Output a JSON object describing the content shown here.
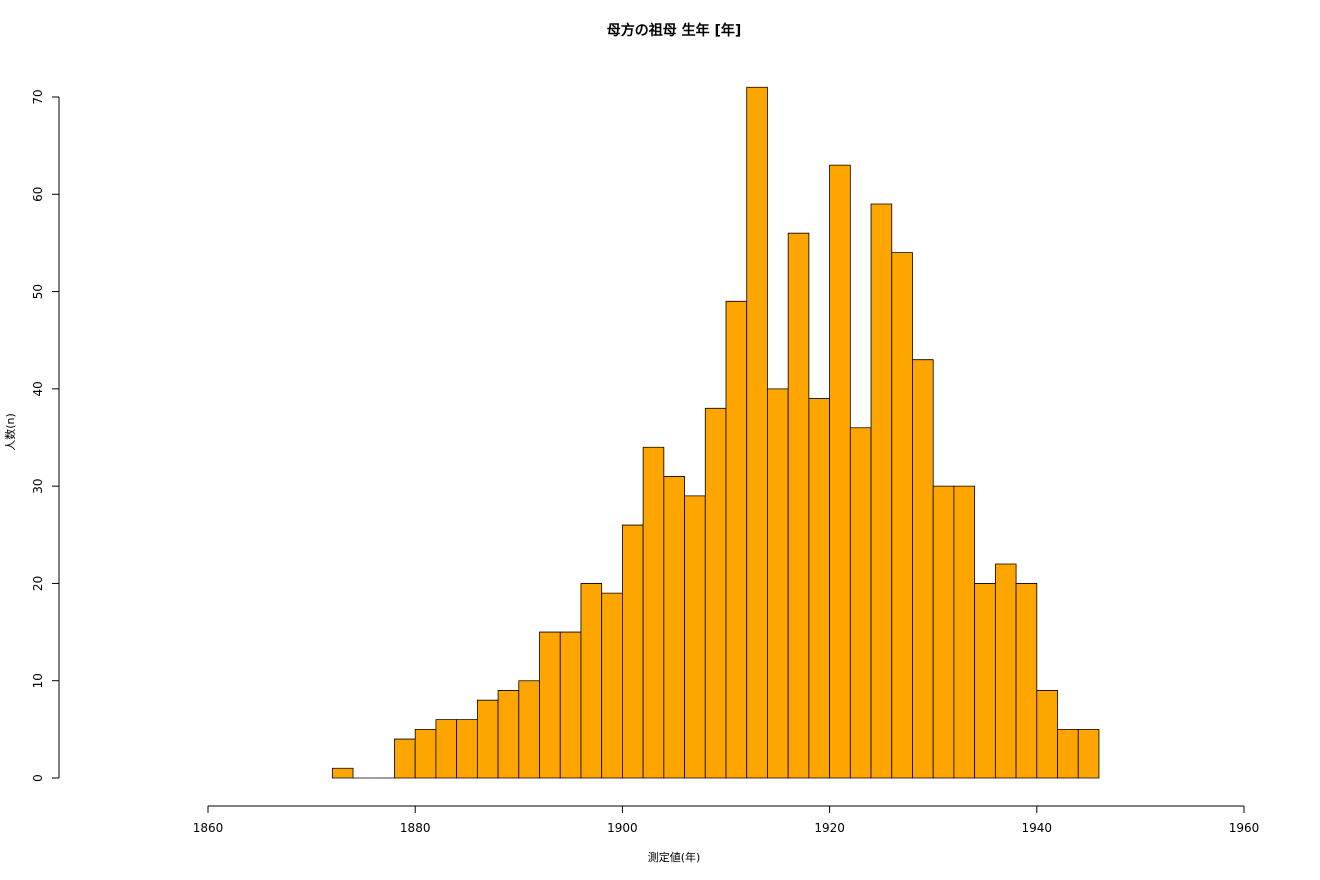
{
  "chart_data": {
    "type": "histogram",
    "title": "母方の祖母 生年 [年]",
    "x_label": "測定値(年)",
    "y_label": "人数(n)",
    "bins": [
      1872,
      1874,
      1876,
      1878,
      1880,
      1882,
      1884,
      1886,
      1888,
      1890,
      1892,
      1894,
      1896,
      1898,
      1900,
      1902,
      1904,
      1906,
      1908,
      1910,
      1912,
      1914,
      1916,
      1918,
      1920,
      1922,
      1924,
      1926,
      1928,
      1930,
      1932,
      1934,
      1936,
      1938,
      1940,
      1942,
      1944,
      1946
    ],
    "counts": [
      1,
      0,
      0,
      4,
      5,
      6,
      6,
      8,
      9,
      10,
      15,
      15,
      20,
      19,
      26,
      34,
      31,
      29,
      38,
      49,
      71,
      40,
      56,
      39,
      63,
      36,
      59,
      54,
      43,
      30,
      30,
      20,
      22,
      20,
      9,
      5,
      5
    ],
    "color": "#ffa500",
    "xlim": [
      1860,
      1960
    ],
    "xticks": [
      1860,
      1880,
      1900,
      1920,
      1940,
      1960
    ],
    "ylim": [
      0,
      72
    ],
    "yticks": [
      0,
      10,
      20,
      30,
      40,
      50,
      60,
      70
    ]
  }
}
